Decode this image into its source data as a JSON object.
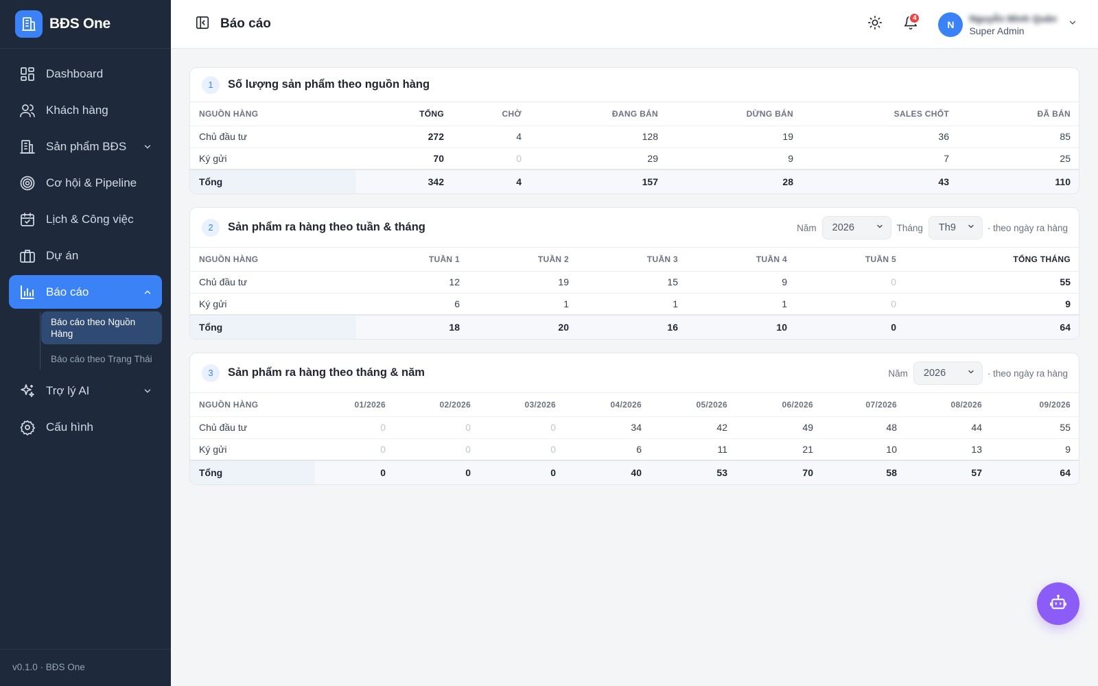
{
  "brand": {
    "name": "BĐS One"
  },
  "sidebar": {
    "items": [
      {
        "label": "Dashboard",
        "icon": "dashboard-icon"
      },
      {
        "label": "Khách hàng",
        "icon": "users-icon"
      },
      {
        "label": "Sản phẩm BĐS",
        "icon": "building-icon",
        "expandable": true
      },
      {
        "label": "Cơ hội & Pipeline",
        "icon": "target-icon"
      },
      {
        "label": "Lịch & Công việc",
        "icon": "calendar-icon"
      },
      {
        "label": "Dự án",
        "icon": "briefcase-icon"
      },
      {
        "label": "Báo cáo",
        "icon": "chart-icon",
        "active": true,
        "expanded": true
      },
      {
        "label": "Trợ lý AI",
        "icon": "sparkles-icon",
        "expandable": true
      },
      {
        "label": "Cấu hình",
        "icon": "gear-icon"
      }
    ],
    "sub_items": [
      {
        "label": "Báo cáo theo Nguồn Hàng",
        "active": true
      },
      {
        "label": "Báo cáo theo Trạng Thái"
      }
    ],
    "version": "v0.1.0 · BĐS One"
  },
  "header": {
    "title": "Báo cáo",
    "notifications_count": "4",
    "user": {
      "initial": "N",
      "name": "Nguyễn Minh Quân",
      "role": "Super Admin"
    }
  },
  "reports": {
    "r1": {
      "num": "1",
      "title": "Số lượng sản phẩm theo nguồn hàng",
      "columns": [
        "NGUỒN HÀNG",
        "TỔNG",
        "CHỜ",
        "ĐANG BÁN",
        "DỪNG BÁN",
        "SALES CHỐT",
        "ĐÃ BÁN"
      ],
      "rows": [
        {
          "label": "Chủ đầu tư",
          "values": [
            "272",
            "4",
            "128",
            "19",
            "36",
            "85"
          ]
        },
        {
          "label": "Ký gửi",
          "values": [
            "70",
            "0",
            "29",
            "9",
            "7",
            "25"
          ]
        }
      ],
      "total": {
        "label": "Tổng",
        "values": [
          "342",
          "4",
          "157",
          "28",
          "43",
          "110"
        ]
      }
    },
    "r2": {
      "num": "2",
      "title": "Sản phẩm ra hàng theo tuần & tháng",
      "filters": {
        "year_label": "Năm",
        "year_value": "2026",
        "month_label": "Tháng",
        "month_value": "Th9",
        "note": "· theo ngày ra hàng"
      },
      "columns": [
        "NGUỒN HÀNG",
        "TUẦN 1",
        "TUẦN 2",
        "TUẦN 3",
        "TUẦN 4",
        "TUẦN 5",
        "TỔNG THÁNG"
      ],
      "rows": [
        {
          "label": "Chủ đầu tư",
          "values": [
            "12",
            "19",
            "15",
            "9",
            "0",
            "55"
          ]
        },
        {
          "label": "Ký gửi",
          "values": [
            "6",
            "1",
            "1",
            "1",
            "0",
            "9"
          ]
        }
      ],
      "total": {
        "label": "Tổng",
        "values": [
          "18",
          "20",
          "16",
          "10",
          "0",
          "64"
        ]
      }
    },
    "r3": {
      "num": "3",
      "title": "Sản phẩm ra hàng theo tháng & năm",
      "filters": {
        "year_label": "Năm",
        "year_value": "2026",
        "note": "· theo ngày ra hàng"
      },
      "columns": [
        "NGUỒN HÀNG",
        "01/2026",
        "02/2026",
        "03/2026",
        "04/2026",
        "05/2026",
        "06/2026",
        "07/2026",
        "08/2026",
        "09/2026"
      ],
      "rows": [
        {
          "label": "Chủ đầu tư",
          "values": [
            "0",
            "0",
            "0",
            "34",
            "42",
            "49",
            "48",
            "44",
            "55"
          ]
        },
        {
          "label": "Ký gửi",
          "values": [
            "0",
            "0",
            "0",
            "6",
            "11",
            "21",
            "10",
            "13",
            "9"
          ]
        }
      ],
      "total": {
        "label": "Tổng",
        "values": [
          "0",
          "0",
          "0",
          "40",
          "53",
          "70",
          "58",
          "57",
          "64"
        ]
      }
    }
  },
  "colors": {
    "sidebar": "#1e293b",
    "accent": "#3b82f6",
    "fab": "#8b5cf6",
    "badge": "#ef4444"
  }
}
